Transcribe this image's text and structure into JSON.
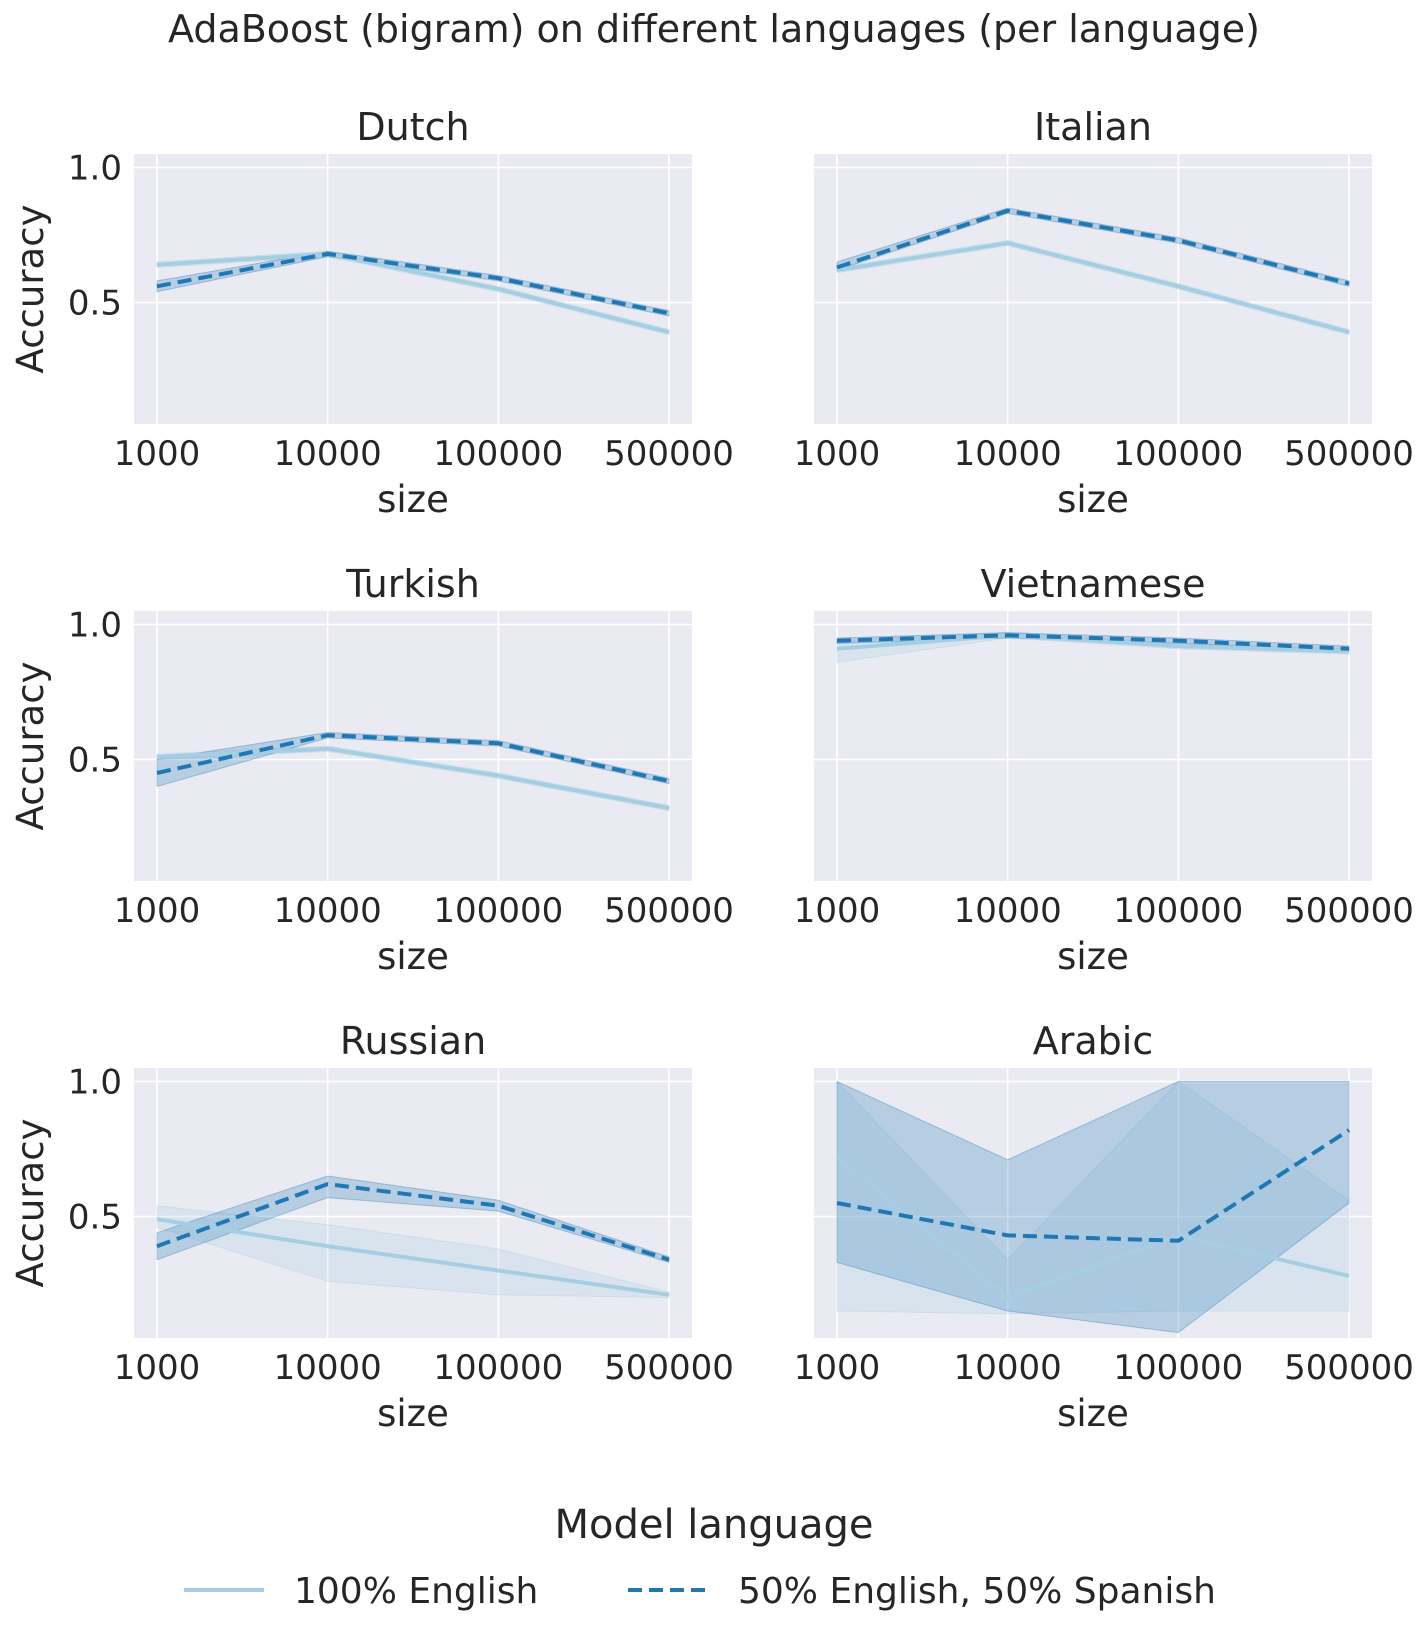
{
  "figure": {
    "title": "AdaBoost (bigram) on different languages (per language)"
  },
  "colors": {
    "panel_bg": "#EAEAF2",
    "grid": "#FFFFFF",
    "english": "#A6CEE3",
    "mixed": "#1F78B4",
    "text": "#262626"
  },
  "legend": {
    "title": "Model language",
    "placement": "bottom-center",
    "entries": [
      {
        "label": "100% English",
        "style": "solid"
      },
      {
        "label": "50% English, 50% Spanish",
        "style": "dashed"
      }
    ]
  },
  "chart_data": [
    {
      "type": "line",
      "title": "Dutch",
      "xlabel": "size",
      "ylabel": "Accuracy",
      "categories": [
        "1000",
        "10000",
        "100000",
        "500000"
      ],
      "ylim": [
        0.05,
        1.05
      ],
      "yticks": [
        "0.5",
        "1.0"
      ],
      "series": [
        {
          "name": "100% English",
          "values": [
            0.64,
            0.68,
            0.55,
            0.39
          ],
          "lower": [
            0.63,
            0.67,
            0.54,
            0.38
          ],
          "upper": [
            0.65,
            0.69,
            0.56,
            0.4
          ]
        },
        {
          "name": "50% English, 50% Spanish",
          "values": [
            0.56,
            0.68,
            0.59,
            0.46
          ],
          "lower": [
            0.54,
            0.67,
            0.58,
            0.45
          ],
          "upper": [
            0.58,
            0.69,
            0.6,
            0.47
          ]
        }
      ]
    },
    {
      "type": "line",
      "title": "Italian",
      "xlabel": "size",
      "ylabel": "",
      "categories": [
        "1000",
        "10000",
        "100000",
        "500000"
      ],
      "ylim": [
        0.05,
        1.05
      ],
      "yticks": [],
      "series": [
        {
          "name": "100% English",
          "values": [
            0.62,
            0.72,
            0.56,
            0.39
          ],
          "lower": [
            0.61,
            0.71,
            0.55,
            0.38
          ],
          "upper": [
            0.63,
            0.73,
            0.57,
            0.4
          ]
        },
        {
          "name": "50% English, 50% Spanish",
          "values": [
            0.63,
            0.84,
            0.73,
            0.57
          ],
          "lower": [
            0.62,
            0.83,
            0.72,
            0.56
          ],
          "upper": [
            0.65,
            0.85,
            0.74,
            0.58
          ]
        }
      ]
    },
    {
      "type": "line",
      "title": "Turkish",
      "xlabel": "size",
      "ylabel": "Accuracy",
      "categories": [
        "1000",
        "10000",
        "100000",
        "500000"
      ],
      "ylim": [
        0.05,
        1.05
      ],
      "yticks": [
        "0.5",
        "1.0"
      ],
      "series": [
        {
          "name": "100% English",
          "values": [
            0.51,
            0.54,
            0.44,
            0.32
          ],
          "lower": [
            0.5,
            0.53,
            0.43,
            0.31
          ],
          "upper": [
            0.52,
            0.55,
            0.45,
            0.33
          ]
        },
        {
          "name": "50% English, 50% Spanish",
          "values": [
            0.45,
            0.59,
            0.56,
            0.42
          ],
          "lower": [
            0.4,
            0.58,
            0.55,
            0.41
          ],
          "upper": [
            0.5,
            0.6,
            0.57,
            0.43
          ]
        }
      ]
    },
    {
      "type": "line",
      "title": "Vietnamese",
      "xlabel": "size",
      "ylabel": "",
      "categories": [
        "1000",
        "10000",
        "100000",
        "500000"
      ],
      "ylim": [
        0.05,
        1.05
      ],
      "yticks": [],
      "series": [
        {
          "name": "100% English",
          "values": [
            0.91,
            0.96,
            0.92,
            0.9
          ],
          "lower": [
            0.86,
            0.95,
            0.91,
            0.89
          ],
          "upper": [
            0.94,
            0.97,
            0.93,
            0.91
          ]
        },
        {
          "name": "50% English, 50% Spanish",
          "values": [
            0.94,
            0.96,
            0.94,
            0.91
          ],
          "lower": [
            0.93,
            0.95,
            0.93,
            0.9
          ],
          "upper": [
            0.95,
            0.97,
            0.95,
            0.92
          ]
        }
      ]
    },
    {
      "type": "line",
      "title": "Russian",
      "xlabel": "size",
      "ylabel": "Accuracy",
      "categories": [
        "1000",
        "10000",
        "100000",
        "500000"
      ],
      "ylim": [
        0.05,
        1.05
      ],
      "yticks": [
        "0.5",
        "1.0"
      ],
      "series": [
        {
          "name": "100% English",
          "values": [
            0.49,
            0.39,
            0.3,
            0.21
          ],
          "lower": [
            0.46,
            0.26,
            0.21,
            0.2
          ],
          "upper": [
            0.54,
            0.47,
            0.38,
            0.22
          ]
        },
        {
          "name": "50% English, 50% Spanish",
          "values": [
            0.39,
            0.62,
            0.54,
            0.34
          ],
          "lower": [
            0.34,
            0.57,
            0.52,
            0.33
          ],
          "upper": [
            0.44,
            0.65,
            0.56,
            0.35
          ]
        }
      ]
    },
    {
      "type": "line",
      "title": "Arabic",
      "xlabel": "size",
      "ylabel": "",
      "categories": [
        "1000",
        "10000",
        "100000",
        "500000"
      ],
      "ylim": [
        0.05,
        1.05
      ],
      "yticks": [],
      "series": [
        {
          "name": "100% English",
          "values": [
            0.72,
            0.2,
            0.43,
            0.28
          ],
          "lower": [
            0.15,
            0.14,
            0.15,
            0.15
          ],
          "upper": [
            1.0,
            0.34,
            1.0,
            0.56
          ]
        },
        {
          "name": "50% English, 50% Spanish",
          "values": [
            0.55,
            0.43,
            0.41,
            0.82
          ],
          "lower": [
            0.33,
            0.15,
            0.07,
            0.55
          ],
          "upper": [
            1.0,
            0.71,
            1.0,
            1.0
          ]
        }
      ]
    }
  ]
}
